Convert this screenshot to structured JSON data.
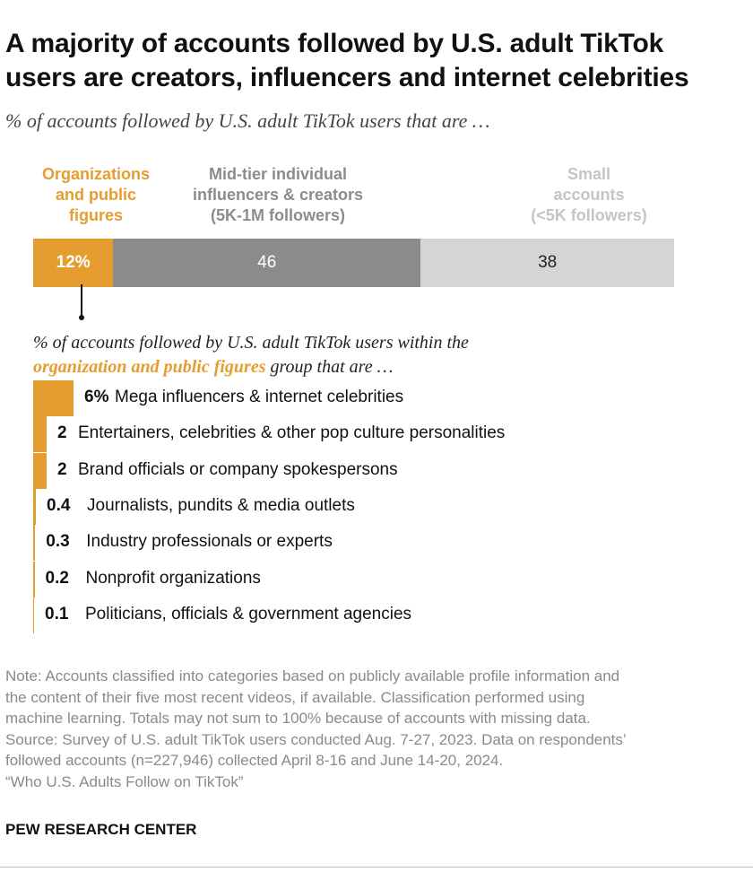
{
  "header": {
    "title_line1": "A majority of accounts followed by U.S. adult TikTok",
    "title_line2": "users are creators, influencers and internet celebrities",
    "subtitle": "% of accounts followed by U.S. adult TikTok users that are …"
  },
  "colors": {
    "orange": "#e69d30",
    "dark_gray": "#8a8b8d",
    "light_gray": "#d5d5d6"
  },
  "chart_data": [
    {
      "type": "bar",
      "orientation": "horizontal-stacked",
      "title": "% of accounts followed by U.S. adult TikTok users that are …",
      "categories": [
        "Organizations and public figures",
        "Mid-tier individual influencers & creators (5K-1M followers)",
        "Small accounts (<5K followers)"
      ],
      "category_labels": [
        [
          "Organizations",
          "and public",
          "figures"
        ],
        [
          "Mid-tier individual",
          "influencers & creators",
          "(5K-1M followers)"
        ],
        [
          "Small",
          "accounts",
          "(<5K followers)"
        ]
      ],
      "values": [
        12,
        46,
        38
      ],
      "value_labels": [
        "12%",
        "46",
        "38"
      ],
      "xlim": [
        0,
        100
      ]
    },
    {
      "type": "bar",
      "orientation": "horizontal",
      "title_parts": [
        "% of accounts followed by U.S. adult TikTok users within the",
        "organization and public figures",
        "group that are …"
      ],
      "categories": [
        "Mega influencers & internet celebrities",
        "Entertainers, celebrities & other pop culture personalities",
        "Brand officials or company spokespersons",
        "Journalists, pundits & media outlets",
        "Industry professionals or experts",
        "Nonprofit organizations",
        "Politicians, officials & government agencies"
      ],
      "values": [
        6,
        2,
        2,
        0.4,
        0.3,
        0.2,
        0.1
      ],
      "value_labels": [
        "6%",
        "2",
        "2",
        "0.4",
        "0.3",
        "0.2",
        "0.1"
      ],
      "xlim": [
        0,
        12
      ]
    }
  ],
  "footer": {
    "note_lines": [
      "Note: Accounts classified into categories based on publicly available profile information and",
      "the content of their five most recent videos, if available. Classification performed using",
      "machine learning. Totals may not sum to 100% because of accounts with missing data.",
      "Source: Survey of U.S. adult TikTok users conducted Aug. 7-27, 2023. Data on respondents’",
      "followed accounts (n=227,946) collected April 8-16 and June 14-20, 2024.",
      "“Who U.S. Adults Follow on TikTok”"
    ],
    "org": "PEW RESEARCH CENTER"
  }
}
